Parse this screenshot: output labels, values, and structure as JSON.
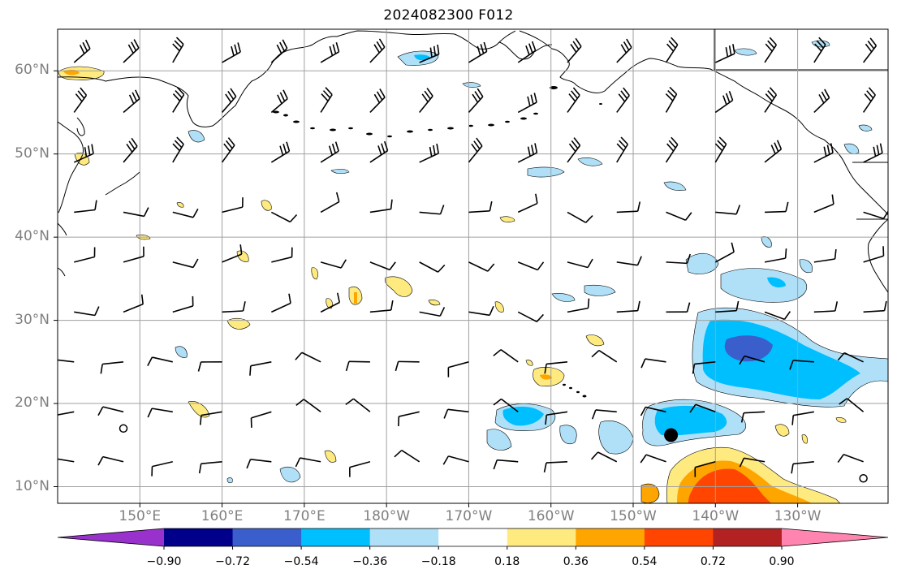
{
  "title": "2024082300 F012",
  "map": {
    "projection": "PlateCarree",
    "extent": {
      "lon_min": 140,
      "lon_max": 241,
      "lat_min": 8,
      "lat_max": 65
    },
    "gridlines": true,
    "lat_labels": [
      "10°N",
      "20°N",
      "30°N",
      "40°N",
      "50°N",
      "60°N"
    ],
    "lat_values": [
      10,
      20,
      30,
      40,
      50,
      60
    ],
    "lon_labels": [
      "150°E",
      "160°E",
      "170°E",
      "180°W",
      "170°W",
      "160°W",
      "150°W",
      "140°W",
      "130°W"
    ],
    "lon_values": [
      150,
      160,
      170,
      180,
      190,
      200,
      210,
      220,
      230
    ],
    "marker": {
      "lon": 214.6,
      "lat": 16.2,
      "type": "storm-center"
    },
    "open_circles": [
      {
        "lon": 148,
        "lat": 17
      },
      {
        "lon": 238,
        "lat": 11
      }
    ],
    "features": [
      "coastlines",
      "wind barbs",
      "filled contours"
    ]
  },
  "colorbar": {
    "ticks": [
      "−0.90",
      "−0.72",
      "−0.54",
      "−0.36",
      "−0.18",
      "0.18",
      "0.36",
      "0.54",
      "0.72",
      "0.90"
    ],
    "boundaries": [
      -0.9,
      -0.72,
      -0.54,
      -0.36,
      -0.18,
      0.18,
      0.36,
      0.54,
      0.72,
      0.9
    ],
    "colors": [
      "#9932cc",
      "#00008b",
      "#3a5fcd",
      "#00bfff",
      "#b0e0f8",
      "#ffffff",
      "#ffea80",
      "#ffa500",
      "#ff4500",
      "#b22222",
      "#ff85b0"
    ],
    "extend": "both"
  },
  "colors": {
    "grid": "#a0a0a0",
    "coast": "#000000",
    "marker": "#000000"
  }
}
